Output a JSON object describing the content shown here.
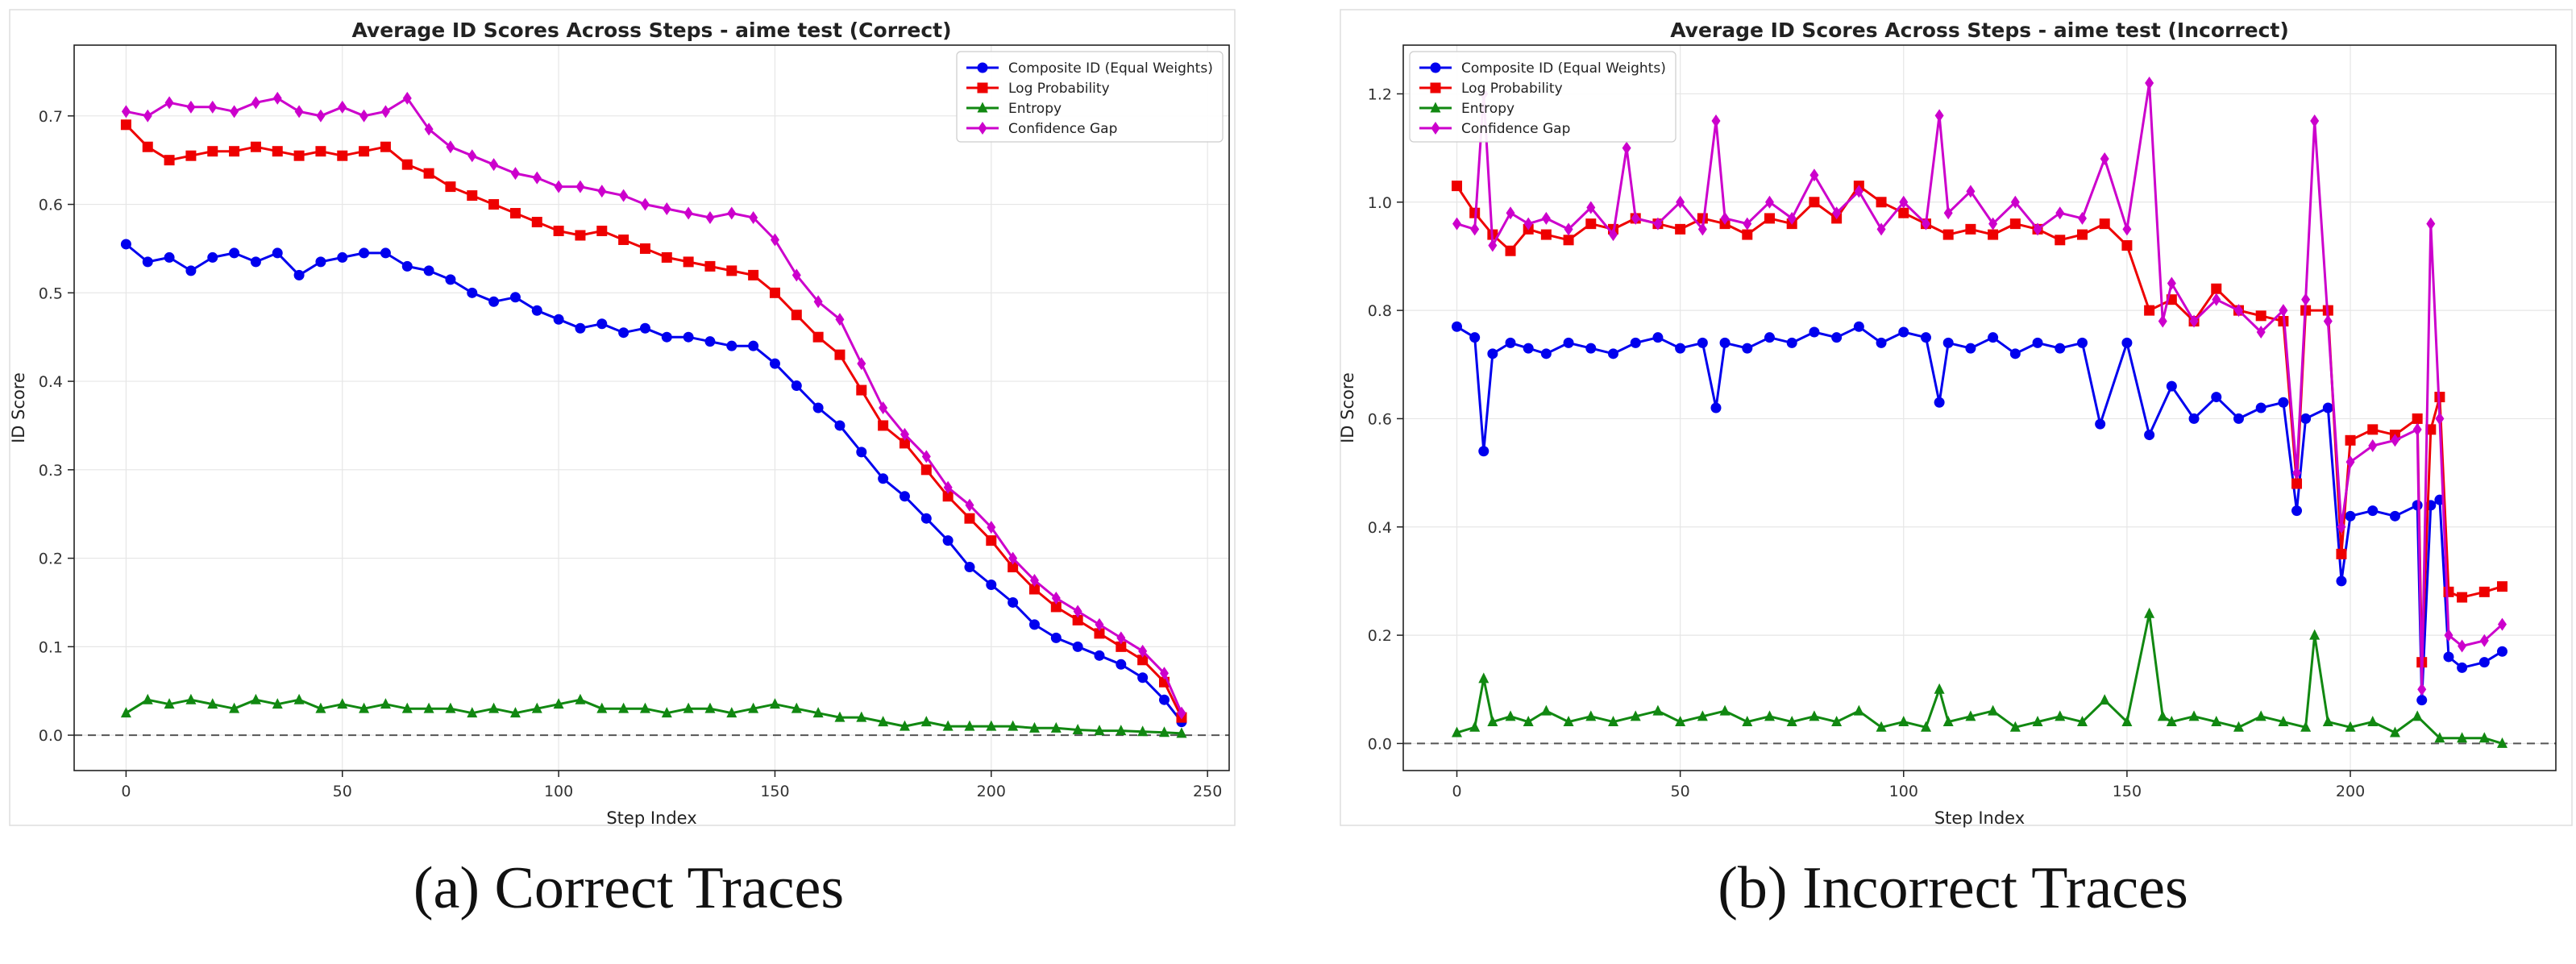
{
  "chart_data": [
    {
      "type": "line",
      "title": "Average ID Scores Across Steps - aime test (Correct)",
      "xlabel": "Step Index",
      "ylabel": "ID Score",
      "xlim": [
        -12,
        255
      ],
      "ylim": [
        -0.04,
        0.78
      ],
      "xticks": [
        0,
        50,
        100,
        150,
        200,
        250
      ],
      "yticks": [
        0.0,
        0.1,
        0.2,
        0.3,
        0.4,
        0.5,
        0.6,
        0.7
      ],
      "legend": [
        "Composite ID (Equal Weights)",
        "Log Probability",
        "Entropy",
        "Confidence Gap"
      ],
      "legend_position": "top-right",
      "grid": true,
      "reference_line_y": 0.0,
      "caption": "(a) Correct Traces",
      "series": [
        {
          "name": "Composite ID (Equal Weights)",
          "color": "#0000ee",
          "marker": "circle",
          "x": [
            0,
            5,
            10,
            15,
            20,
            25,
            30,
            35,
            40,
            45,
            50,
            55,
            60,
            65,
            70,
            75,
            80,
            85,
            90,
            95,
            100,
            105,
            110,
            115,
            120,
            125,
            130,
            135,
            140,
            145,
            150,
            155,
            160,
            165,
            170,
            175,
            180,
            185,
            190,
            195,
            200,
            205,
            210,
            215,
            220,
            225,
            230,
            235,
            240,
            244
          ],
          "y": [
            0.555,
            0.535,
            0.54,
            0.525,
            0.54,
            0.545,
            0.535,
            0.545,
            0.52,
            0.535,
            0.54,
            0.545,
            0.545,
            0.53,
            0.525,
            0.515,
            0.5,
            0.49,
            0.495,
            0.48,
            0.47,
            0.46,
            0.465,
            0.455,
            0.46,
            0.45,
            0.45,
            0.445,
            0.44,
            0.44,
            0.42,
            0.395,
            0.37,
            0.35,
            0.32,
            0.29,
            0.27,
            0.245,
            0.22,
            0.19,
            0.17,
            0.15,
            0.125,
            0.11,
            0.1,
            0.09,
            0.08,
            0.065,
            0.04,
            0.015
          ]
        },
        {
          "name": "Log Probability",
          "color": "#ee0000",
          "marker": "square",
          "x": [
            0,
            5,
            10,
            15,
            20,
            25,
            30,
            35,
            40,
            45,
            50,
            55,
            60,
            65,
            70,
            75,
            80,
            85,
            90,
            95,
            100,
            105,
            110,
            115,
            120,
            125,
            130,
            135,
            140,
            145,
            150,
            155,
            160,
            165,
            170,
            175,
            180,
            185,
            190,
            195,
            200,
            205,
            210,
            215,
            220,
            225,
            230,
            235,
            240,
            244
          ],
          "y": [
            0.69,
            0.665,
            0.65,
            0.655,
            0.66,
            0.66,
            0.665,
            0.66,
            0.655,
            0.66,
            0.655,
            0.66,
            0.665,
            0.645,
            0.635,
            0.62,
            0.61,
            0.6,
            0.59,
            0.58,
            0.57,
            0.565,
            0.57,
            0.56,
            0.55,
            0.54,
            0.535,
            0.53,
            0.525,
            0.52,
            0.5,
            0.475,
            0.45,
            0.43,
            0.39,
            0.35,
            0.33,
            0.3,
            0.27,
            0.245,
            0.22,
            0.19,
            0.165,
            0.145,
            0.13,
            0.115,
            0.1,
            0.085,
            0.06,
            0.02
          ]
        },
        {
          "name": "Entropy",
          "color": "#118811",
          "marker": "triangle",
          "x": [
            0,
            5,
            10,
            15,
            20,
            25,
            30,
            35,
            40,
            45,
            50,
            55,
            60,
            65,
            70,
            75,
            80,
            85,
            90,
            95,
            100,
            105,
            110,
            115,
            120,
            125,
            130,
            135,
            140,
            145,
            150,
            155,
            160,
            165,
            170,
            175,
            180,
            185,
            190,
            195,
            200,
            205,
            210,
            215,
            220,
            225,
            230,
            235,
            240,
            244
          ],
          "y": [
            0.025,
            0.04,
            0.035,
            0.04,
            0.035,
            0.03,
            0.04,
            0.035,
            0.04,
            0.03,
            0.035,
            0.03,
            0.035,
            0.03,
            0.03,
            0.03,
            0.025,
            0.03,
            0.025,
            0.03,
            0.035,
            0.04,
            0.03,
            0.03,
            0.03,
            0.025,
            0.03,
            0.03,
            0.025,
            0.03,
            0.035,
            0.03,
            0.025,
            0.02,
            0.02,
            0.015,
            0.01,
            0.015,
            0.01,
            0.01,
            0.01,
            0.01,
            0.008,
            0.008,
            0.006,
            0.005,
            0.005,
            0.004,
            0.003,
            0.002
          ]
        },
        {
          "name": "Confidence Gap",
          "color": "#cc00cc",
          "marker": "diamond",
          "x": [
            0,
            5,
            10,
            15,
            20,
            25,
            30,
            35,
            40,
            45,
            50,
            55,
            60,
            65,
            70,
            75,
            80,
            85,
            90,
            95,
            100,
            105,
            110,
            115,
            120,
            125,
            130,
            135,
            140,
            145,
            150,
            155,
            160,
            165,
            170,
            175,
            180,
            185,
            190,
            195,
            200,
            205,
            210,
            215,
            220,
            225,
            230,
            235,
            240,
            244
          ],
          "y": [
            0.705,
            0.7,
            0.715,
            0.71,
            0.71,
            0.705,
            0.715,
            0.72,
            0.705,
            0.7,
            0.71,
            0.7,
            0.705,
            0.72,
            0.685,
            0.665,
            0.655,
            0.645,
            0.635,
            0.63,
            0.62,
            0.62,
            0.615,
            0.61,
            0.6,
            0.595,
            0.59,
            0.585,
            0.59,
            0.585,
            0.56,
            0.52,
            0.49,
            0.47,
            0.42,
            0.37,
            0.34,
            0.315,
            0.28,
            0.26,
            0.235,
            0.2,
            0.175,
            0.155,
            0.14,
            0.125,
            0.11,
            0.095,
            0.07,
            0.025
          ]
        }
      ]
    },
    {
      "type": "line",
      "title": "Average ID Scores Across Steps - aime test (Incorrect)",
      "xlabel": "Step Index",
      "ylabel": "ID Score",
      "xlim": [
        -12,
        246
      ],
      "ylim": [
        -0.05,
        1.29
      ],
      "xticks": [
        0,
        50,
        100,
        150,
        200
      ],
      "yticks": [
        0.0,
        0.2,
        0.4,
        0.6,
        0.8,
        1.0,
        1.2
      ],
      "legend": [
        "Composite ID (Equal Weights)",
        "Log Probability",
        "Entropy",
        "Confidence Gap"
      ],
      "legend_position": "top-left",
      "grid": true,
      "reference_line_y": 0.0,
      "caption": "(b) Incorrect Traces",
      "series": [
        {
          "name": "Composite ID (Equal Weights)",
          "color": "#0000ee",
          "marker": "circle",
          "x": [
            0,
            4,
            6,
            8,
            12,
            16,
            20,
            25,
            30,
            35,
            40,
            45,
            50,
            55,
            58,
            60,
            65,
            70,
            75,
            80,
            85,
            90,
            95,
            100,
            105,
            108,
            110,
            115,
            120,
            125,
            130,
            135,
            140,
            144,
            150,
            155,
            160,
            165,
            170,
            175,
            180,
            185,
            188,
            190,
            195,
            198,
            200,
            205,
            210,
            215,
            216,
            218,
            220,
            222,
            225,
            230,
            234
          ],
          "y": [
            0.77,
            0.75,
            0.54,
            0.72,
            0.74,
            0.73,
            0.72,
            0.74,
            0.73,
            0.72,
            0.74,
            0.75,
            0.73,
            0.74,
            0.62,
            0.74,
            0.73,
            0.75,
            0.74,
            0.76,
            0.75,
            0.77,
            0.74,
            0.76,
            0.75,
            0.63,
            0.74,
            0.73,
            0.75,
            0.72,
            0.74,
            0.73,
            0.74,
            0.59,
            0.74,
            0.57,
            0.66,
            0.6,
            0.64,
            0.6,
            0.62,
            0.63,
            0.43,
            0.6,
            0.62,
            0.3,
            0.42,
            0.43,
            0.42,
            0.44,
            0.08,
            0.44,
            0.45,
            0.16,
            0.14,
            0.15,
            0.17
          ]
        },
        {
          "name": "Log Probability",
          "color": "#ee0000",
          "marker": "square",
          "x": [
            0,
            4,
            8,
            12,
            16,
            20,
            25,
            30,
            35,
            40,
            45,
            50,
            55,
            60,
            65,
            70,
            75,
            80,
            85,
            90,
            95,
            100,
            105,
            110,
            115,
            120,
            125,
            130,
            135,
            140,
            145,
            150,
            155,
            160,
            165,
            170,
            175,
            180,
            185,
            188,
            190,
            195,
            198,
            200,
            205,
            210,
            215,
            216,
            218,
            220,
            222,
            225,
            230,
            234
          ],
          "y": [
            1.03,
            0.98,
            0.94,
            0.91,
            0.95,
            0.94,
            0.93,
            0.96,
            0.95,
            0.97,
            0.96,
            0.95,
            0.97,
            0.96,
            0.94,
            0.97,
            0.96,
            1.0,
            0.97,
            1.03,
            1.0,
            0.98,
            0.96,
            0.94,
            0.95,
            0.94,
            0.96,
            0.95,
            0.93,
            0.94,
            0.96,
            0.92,
            0.8,
            0.82,
            0.78,
            0.84,
            0.8,
            0.79,
            0.78,
            0.48,
            0.8,
            0.8,
            0.35,
            0.56,
            0.58,
            0.57,
            0.6,
            0.15,
            0.58,
            0.64,
            0.28,
            0.27,
            0.28,
            0.29
          ]
        },
        {
          "name": "Entropy",
          "color": "#118811",
          "marker": "triangle",
          "x": [
            0,
            4,
            6,
            8,
            12,
            16,
            20,
            25,
            30,
            35,
            40,
            45,
            50,
            55,
            60,
            65,
            70,
            75,
            80,
            85,
            90,
            95,
            100,
            105,
            108,
            110,
            115,
            120,
            125,
            130,
            135,
            140,
            145,
            150,
            155,
            158,
            160,
            165,
            170,
            175,
            180,
            185,
            190,
            192,
            195,
            200,
            205,
            210,
            215,
            220,
            225,
            230,
            234
          ],
          "y": [
            0.02,
            0.03,
            0.12,
            0.04,
            0.05,
            0.04,
            0.06,
            0.04,
            0.05,
            0.04,
            0.05,
            0.06,
            0.04,
            0.05,
            0.06,
            0.04,
            0.05,
            0.04,
            0.05,
            0.04,
            0.06,
            0.03,
            0.04,
            0.03,
            0.1,
            0.04,
            0.05,
            0.06,
            0.03,
            0.04,
            0.05,
            0.04,
            0.08,
            0.04,
            0.24,
            0.05,
            0.04,
            0.05,
            0.04,
            0.03,
            0.05,
            0.04,
            0.03,
            0.2,
            0.04,
            0.03,
            0.04,
            0.02,
            0.05,
            0.01,
            0.01,
            0.01,
            0.0
          ]
        },
        {
          "name": "Confidence Gap",
          "color": "#cc00cc",
          "marker": "diamond",
          "x": [
            0,
            4,
            6,
            8,
            12,
            16,
            20,
            25,
            30,
            35,
            38,
            40,
            45,
            50,
            55,
            58,
            60,
            65,
            70,
            75,
            80,
            85,
            90,
            95,
            100,
            105,
            108,
            110,
            115,
            120,
            125,
            130,
            135,
            140,
            145,
            150,
            155,
            158,
            160,
            165,
            170,
            175,
            180,
            185,
            188,
            190,
            192,
            195,
            198,
            200,
            205,
            210,
            215,
            216,
            218,
            220,
            222,
            225,
            230,
            234
          ],
          "y": [
            0.96,
            0.95,
            1.2,
            0.92,
            0.98,
            0.96,
            0.97,
            0.95,
            0.99,
            0.94,
            1.1,
            0.97,
            0.96,
            1.0,
            0.95,
            1.15,
            0.97,
            0.96,
            1.0,
            0.97,
            1.05,
            0.98,
            1.02,
            0.95,
            1.0,
            0.96,
            1.16,
            0.98,
            1.02,
            0.96,
            1.0,
            0.95,
            0.98,
            0.97,
            1.08,
            0.95,
            1.22,
            0.78,
            0.85,
            0.78,
            0.82,
            0.8,
            0.76,
            0.8,
            0.5,
            0.82,
            1.15,
            0.78,
            0.4,
            0.52,
            0.55,
            0.56,
            0.58,
            0.1,
            0.96,
            0.6,
            0.2,
            0.18,
            0.19,
            0.22
          ]
        }
      ]
    }
  ]
}
